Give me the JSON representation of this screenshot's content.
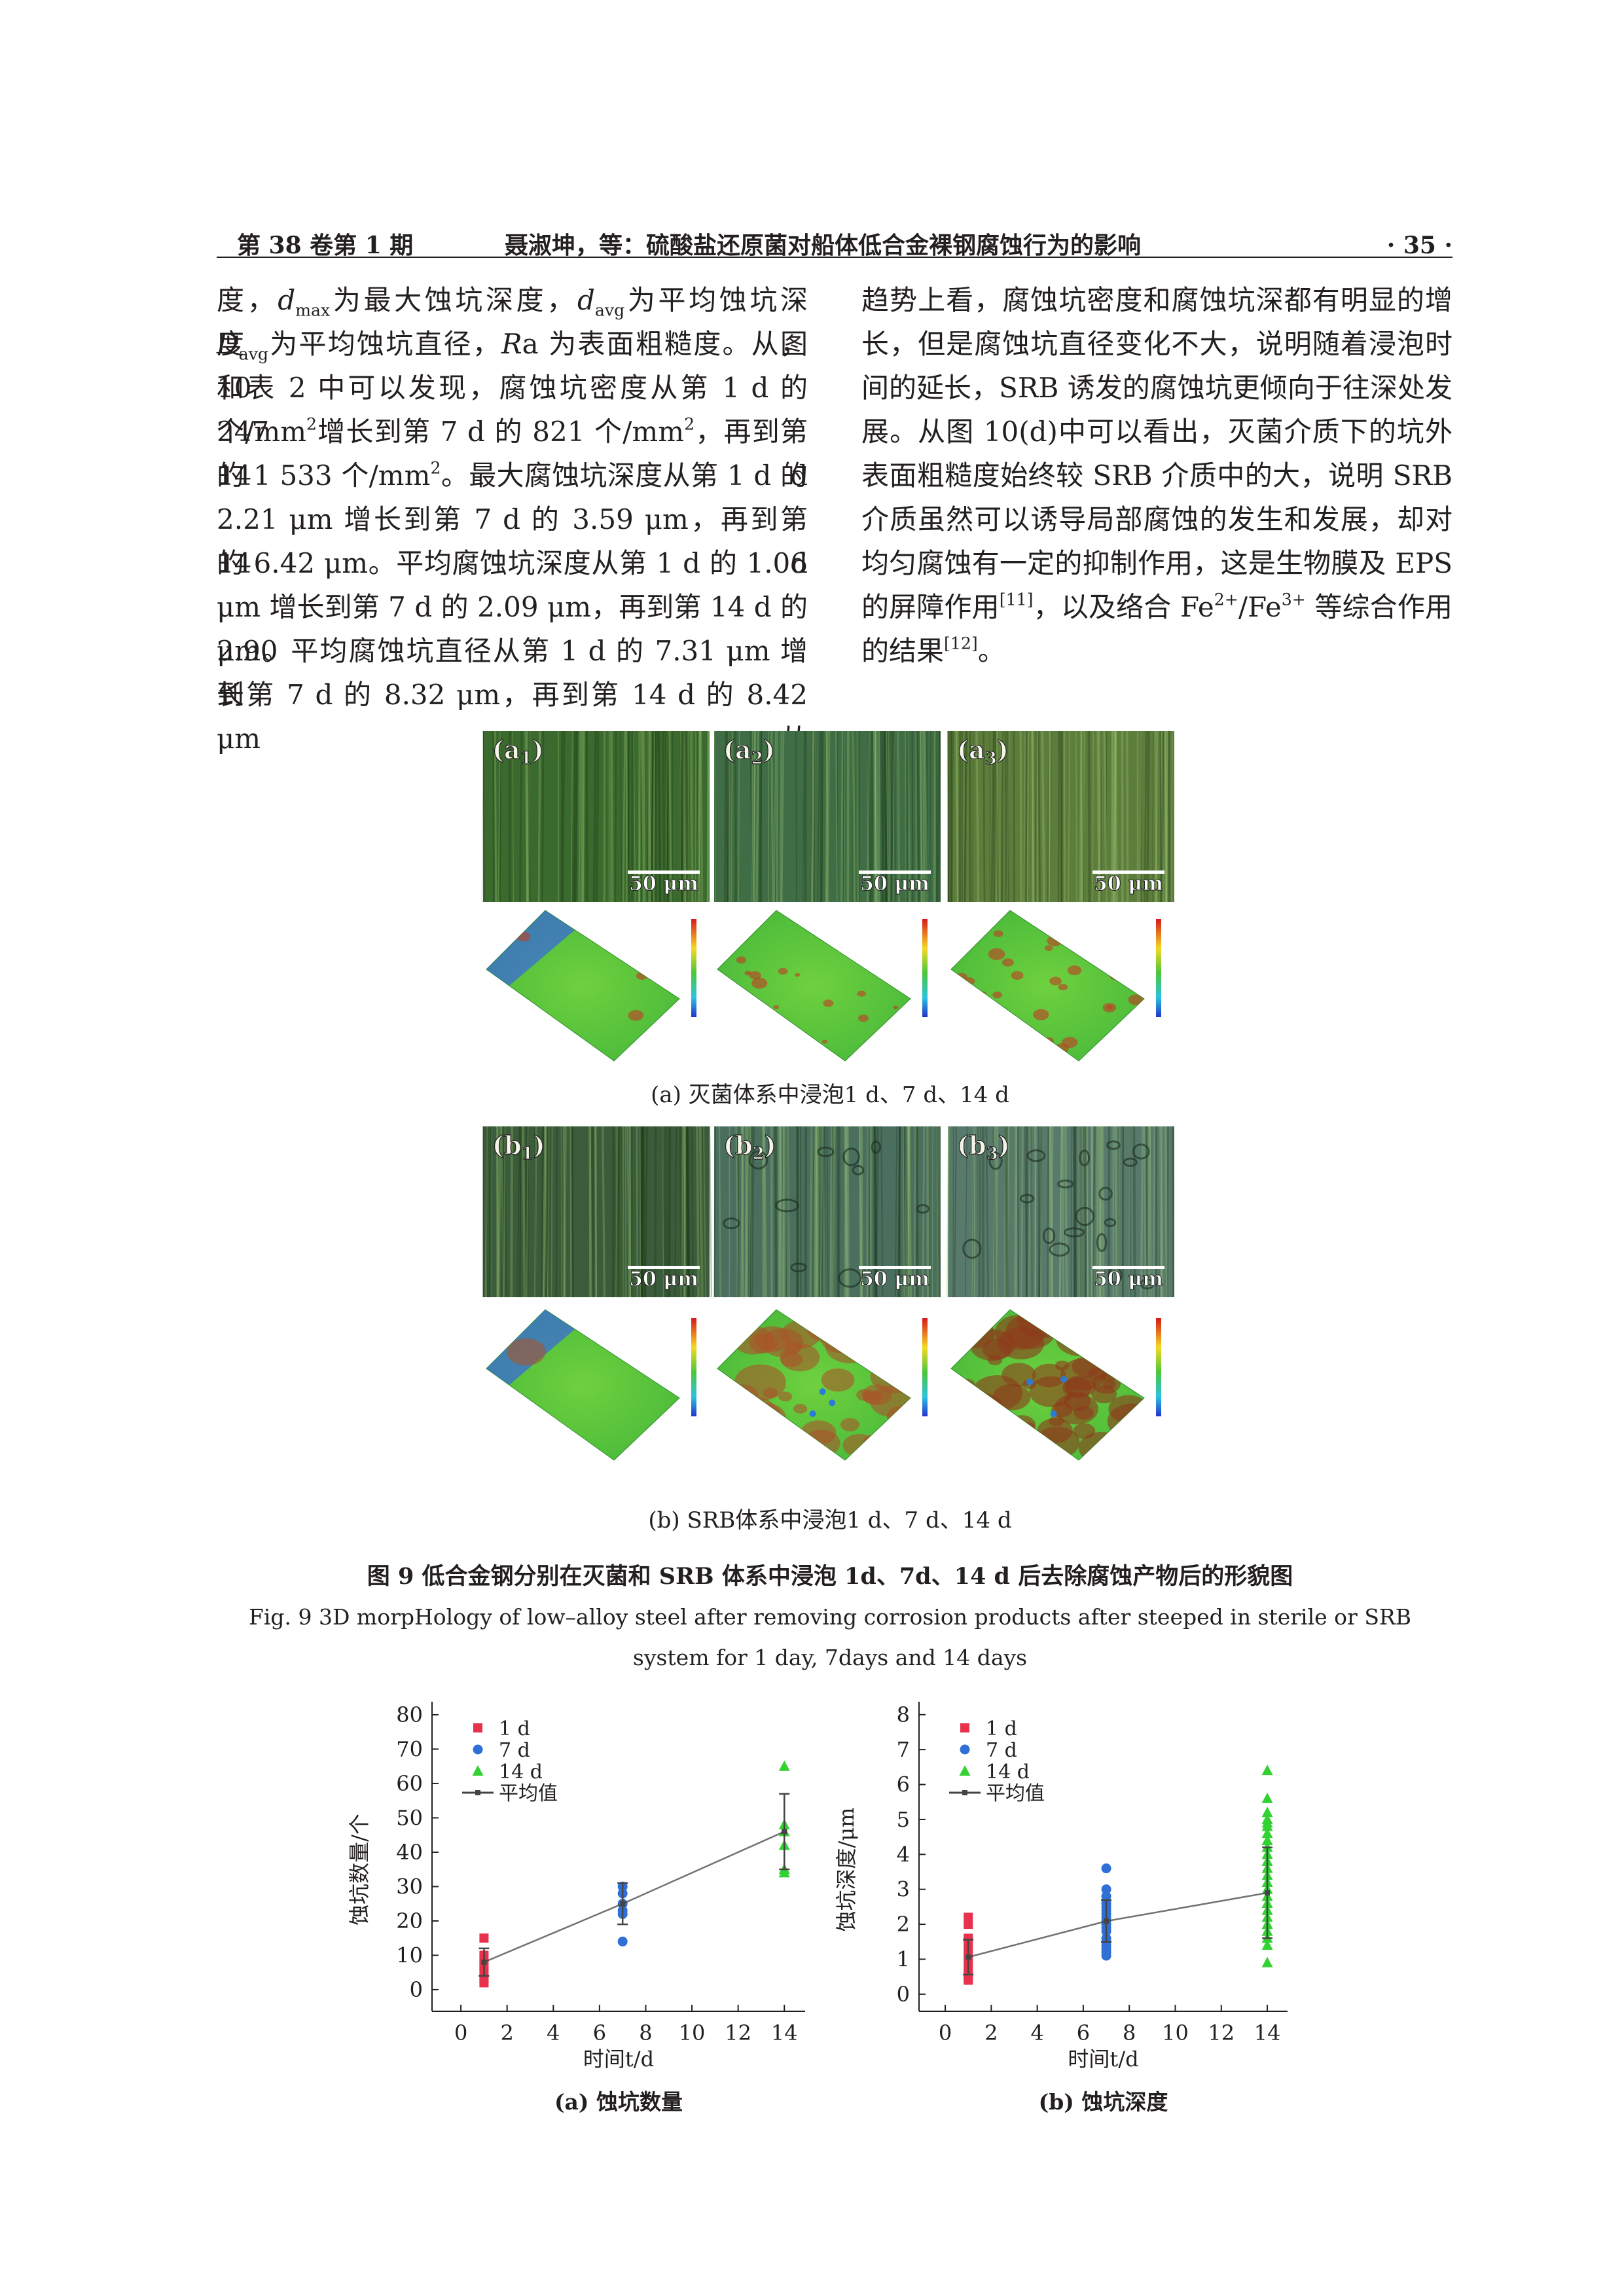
{
  "header": {
    "issue": "第 38 卷第 1 期",
    "title": "聂淑坤，等：硫酸盐还原菌对船体低合金裸钢腐蚀行为的影响",
    "page": "· 35 ·"
  },
  "text": {
    "left": [
      [
        "度，",
        {
          "i": "d"
        },
        {
          "sub": "max"
        },
        "为最大蚀坑深度，",
        {
          "i": "d"
        },
        {
          "sub": "avg"
        },
        "为平均蚀坑深度，"
      ],
      [
        {
          "i": "D"
        },
        {
          "sub": "avg"
        },
        "为平均蚀坑直径，",
        {
          "i": "R"
        },
        "a 为表面粗糙度。从图 10"
      ],
      [
        "和表 2 中可以发现，腐蚀坑密度从第 1 d 的 247"
      ],
      [
        "个/mm",
        {
          "sup": "2"
        },
        "增长到第 7 d 的 821 个/mm",
        {
          "sup": "2"
        },
        "，再到第 14 d"
      ],
      [
        "的 1 533 个/mm",
        {
          "sup": "2"
        },
        "。最大腐蚀坑深度从第 1 d 的"
      ],
      [
        "2.21 μm 增长到第 7 d 的 3.59 μm，再到第 14 d"
      ],
      [
        "的 6.42 μm。平均腐蚀坑深度从第 1 d 的 1.06"
      ],
      [
        "μm 增长到第 7 d 的 2.09 μm，再到第 14 d 的 2.90"
      ],
      [
        "μm。平均腐蚀坑直径从第 1 d 的 7.31 μm 增长"
      ],
      [
        "到第 7 d 的 8.32 μm，再到第 14 d 的 8.42 μm。从"
      ]
    ],
    "right": [
      [
        "趋势上看，腐蚀坑密度和腐蚀坑深都有明显的增"
      ],
      [
        "长，但是腐蚀坑直径变化不大，说明随着浸泡时"
      ],
      [
        "间的延长，SRB 诱发的腐蚀坑更倾向于往深处发"
      ],
      [
        "展。从图 10(d)中可以看出，灭菌介质下的坑外"
      ],
      [
        "表面粗糙度始终较 SRB 介质中的大，说明 SRB"
      ],
      [
        "介质虽然可以诱导局部腐蚀的发生和发展，却对"
      ],
      [
        "均匀腐蚀有一定的抑制作用，这是生物膜及 EPS"
      ],
      [
        "的屏障作用",
        {
          "sup": "[11]"
        },
        "，以及络合 Fe",
        {
          "sup": "2+"
        },
        "/Fe",
        {
          "sup": "3+"
        },
        " 等综合作用"
      ],
      [
        "的结果",
        {
          "sup": "[12]"
        },
        "。"
      ]
    ]
  },
  "figure9": {
    "panels": [
      [
        "(a",
        {
          "sub": "1"
        },
        ")"
      ],
      [
        "(a",
        {
          "sub": "2"
        },
        ")"
      ],
      [
        "(a",
        {
          "sub": "3"
        },
        ")"
      ],
      [
        "(b",
        {
          "sub": "1"
        },
        ")"
      ],
      [
        "(b",
        {
          "sub": "2"
        },
        ")"
      ],
      [
        "(b",
        {
          "sub": "3"
        },
        ")"
      ]
    ],
    "scale": "50 μm",
    "captions": [
      "(a) 灭菌体系中浸泡1 d、7 d、14 d",
      "(b) SRB体系中浸泡1 d、7 d、14 d"
    ],
    "title": "图 9   低合金钢分别在灭菌和 SRB 体系中浸泡 1d、7d、14 d 后去除腐蚀产物后的形貌图",
    "title_en": [
      "Fig. 9   3D morpHology of low–alloy steel after removing corrosion products after steeped in sterile or SRB",
      "system for 1 day, 7days and 14 days"
    ]
  },
  "chart_data": [
    {
      "type": "scatter",
      "caption": "(a) 蚀坑数量",
      "xlabel": "时间t/d",
      "ylabel": "蚀坑数量/个",
      "xlim": [
        -1.25,
        14.9
      ],
      "ylim": [
        -6.3,
        83.8
      ],
      "xticks": [
        0,
        2,
        4,
        6,
        8,
        10,
        12,
        14
      ],
      "yticks": [
        0,
        10,
        20,
        30,
        40,
        50,
        60,
        70,
        80
      ],
      "legend": "upper left",
      "series": [
        {
          "name": "1 d",
          "color": "#e8314d",
          "marker": "square",
          "x": [
            1,
            1,
            1,
            1,
            1,
            1,
            1
          ],
          "values": [
            15,
            10,
            8,
            7,
            5,
            3,
            2
          ]
        },
        {
          "name": "7 d",
          "color": "#2f6fd6",
          "marker": "circle",
          "x": [
            7,
            7,
            7,
            7,
            7,
            7
          ],
          "values": [
            30,
            28,
            25,
            23,
            22,
            14
          ]
        },
        {
          "name": "14 d",
          "color": "#32d232",
          "marker": "triangle",
          "x": [
            14,
            14,
            14,
            14,
            14,
            14
          ],
          "values": [
            65,
            48,
            46,
            42,
            35,
            34
          ]
        },
        {
          "name": "平均值",
          "color": "#444444",
          "marker": "line",
          "x": [
            1,
            7,
            14
          ],
          "values": [
            8,
            25,
            46
          ],
          "errors": [
            4,
            6,
            11
          ]
        }
      ]
    },
    {
      "type": "scatter",
      "caption": "(b) 蚀坑深度",
      "xlabel": "时间t/d",
      "ylabel": "蚀坑深度/μm",
      "xlim": [
        -1.14,
        14.88
      ],
      "ylim": [
        -0.49,
        8.37
      ],
      "xticks": [
        0,
        2,
        4,
        6,
        8,
        10,
        12,
        14
      ],
      "yticks": [
        0,
        1,
        2,
        3,
        4,
        5,
        6,
        7,
        8
      ],
      "legend": "upper left",
      "series": [
        {
          "name": "1 d",
          "color": "#e8314d",
          "marker": "square",
          "x": [
            1,
            1,
            1,
            1,
            1,
            1,
            1,
            1,
            1,
            1,
            1
          ],
          "values": [
            2.2,
            2.0,
            1.6,
            1.5,
            1.3,
            1.1,
            1.0,
            0.8,
            0.6,
            0.5,
            0.4
          ]
        },
        {
          "name": "7 d",
          "color": "#2f6fd6",
          "marker": "circle",
          "x": [
            7,
            7,
            7,
            7,
            7,
            7,
            7,
            7,
            7,
            7,
            7,
            7,
            7,
            7,
            7,
            7,
            7,
            7
          ],
          "values": [
            3.6,
            3.0,
            2.8,
            2.6,
            2.5,
            2.4,
            2.3,
            2.2,
            2.1,
            2.0,
            1.9,
            1.8,
            1.6,
            1.5,
            1.4,
            1.3,
            1.2,
            1.1
          ]
        },
        {
          "name": "14 d",
          "color": "#32d232",
          "marker": "triangle",
          "x": [
            14,
            14,
            14,
            14,
            14,
            14,
            14,
            14,
            14,
            14,
            14,
            14,
            14,
            14,
            14,
            14,
            14,
            14,
            14,
            14,
            14,
            14,
            14,
            14
          ],
          "values": [
            6.4,
            5.6,
            5.2,
            5.0,
            4.9,
            4.8,
            4.6,
            4.4,
            4.2,
            4.0,
            3.8,
            3.6,
            3.4,
            3.2,
            3.0,
            2.8,
            2.6,
            2.4,
            2.2,
            2.0,
            1.8,
            1.6,
            1.4,
            0.9
          ]
        },
        {
          "name": "平均值",
          "color": "#444444",
          "marker": "line",
          "x": [
            1,
            7,
            14
          ],
          "values": [
            1.06,
            2.09,
            2.9
          ],
          "errors": [
            0.5,
            0.6,
            1.3
          ]
        }
      ]
    }
  ]
}
